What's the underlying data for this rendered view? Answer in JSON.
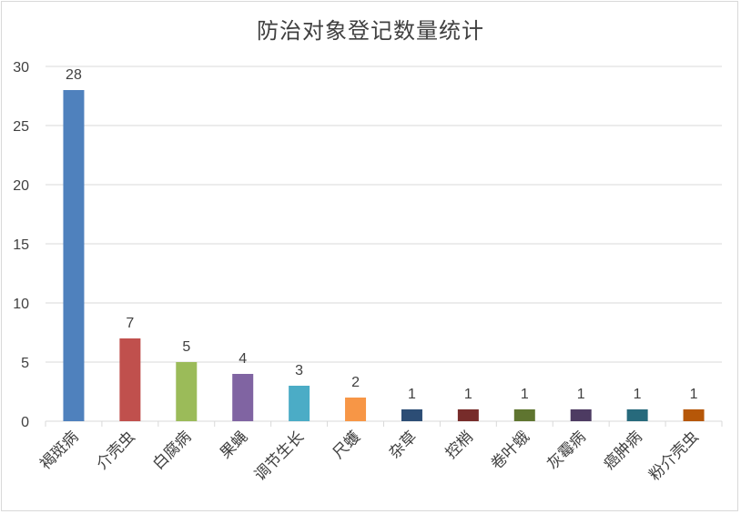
{
  "chart_data": {
    "type": "bar",
    "title": "防治对象登记数量统计",
    "xlabel": "",
    "ylabel": "",
    "ylim": [
      0,
      30
    ],
    "yticks": [
      0,
      5,
      10,
      15,
      20,
      25,
      30
    ],
    "grid": true,
    "legend": null,
    "data_labels": true,
    "categories": [
      "褐斑病",
      "介壳虫",
      "白腐病",
      "果蝇",
      "调节生长",
      "尺蠖",
      "杂草",
      "控梢",
      "卷叶蛾",
      "灰霉病",
      "癌肿病",
      "粉介壳虫"
    ],
    "values": [
      28,
      7,
      5,
      4,
      3,
      2,
      1,
      1,
      1,
      1,
      1,
      1
    ],
    "colors": [
      "#4f81bd",
      "#c0504d",
      "#9bbb59",
      "#8064a2",
      "#4bacc6",
      "#f79646",
      "#2c4d75",
      "#772c2a",
      "#5f7530",
      "#4d3b62",
      "#276a7c",
      "#b65708"
    ]
  }
}
